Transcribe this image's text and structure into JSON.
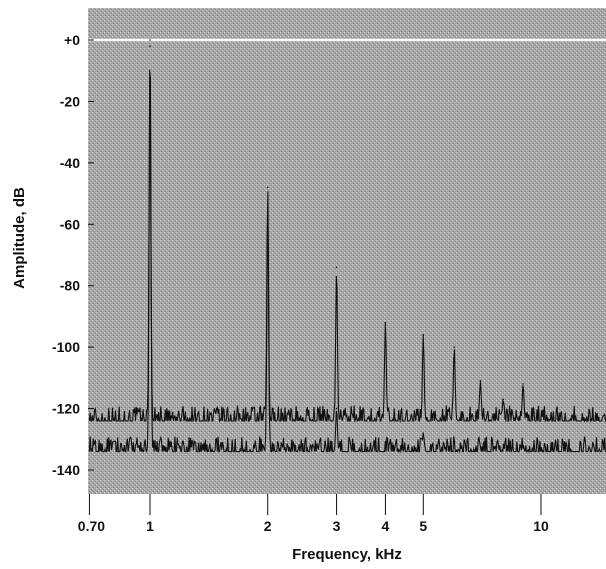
{
  "chart_data": {
    "type": "line",
    "xlabel": "Frequency, kHz",
    "ylabel": "Amplitude, dB",
    "x_scale": "log",
    "xlim": [
      0.7,
      15
    ],
    "ylim": [
      -150,
      5
    ],
    "x_ticks": [
      {
        "value": 0.7,
        "label": "0.70"
      },
      {
        "value": 1,
        "label": "1"
      },
      {
        "value": 2,
        "label": "2"
      },
      {
        "value": 3,
        "label": "3"
      },
      {
        "value": 4,
        "label": "4"
      },
      {
        "value": 5,
        "label": "5"
      },
      {
        "value": 10,
        "label": "10"
      }
    ],
    "y_ticks": [
      {
        "value": 0,
        "label": "+0"
      },
      {
        "value": -20,
        "label": "-20"
      },
      {
        "value": -40,
        "label": "-40"
      },
      {
        "value": -60,
        "label": "-60"
      },
      {
        "value": -80,
        "label": "-80"
      },
      {
        "value": -100,
        "label": "-100"
      },
      {
        "value": -120,
        "label": "-120"
      },
      {
        "value": -140,
        "label": "-140"
      }
    ],
    "reference_line_db": 0,
    "colors": {
      "plot_background": "#a9a9a9",
      "trace": "#111111",
      "reference_line": "#ffffff"
    },
    "series": [
      {
        "floor_db": -124,
        "peaks": [
          {
            "x": 1.0,
            "y": 0
          },
          {
            "x": 2.0,
            "y": -48
          },
          {
            "x": 3.0,
            "y": -74
          },
          {
            "x": 4.0,
            "y": -92
          },
          {
            "x": 5.0,
            "y": -96
          },
          {
            "x": 6.0,
            "y": -100
          },
          {
            "x": 7.0,
            "y": -111
          },
          {
            "x": 8.0,
            "y": -117
          },
          {
            "x": 9.0,
            "y": -112
          }
        ]
      },
      {
        "floor_db": -134,
        "peaks": [
          {
            "x": 1.0,
            "y": -2
          },
          {
            "x": 2.0,
            "y": -56
          },
          {
            "x": 3.0,
            "y": -120
          },
          {
            "x": 5.0,
            "y": -128
          }
        ]
      }
    ]
  }
}
